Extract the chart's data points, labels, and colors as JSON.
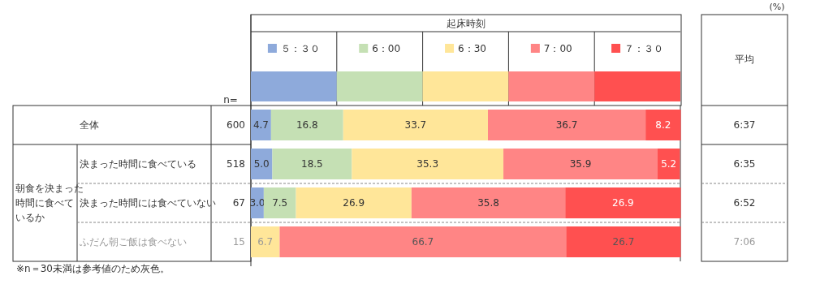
{
  "chart_data": {
    "type": "bar",
    "orientation": "horizontal",
    "stacked": true,
    "legend": "top",
    "legend_title": "起床時刻",
    "categories": [
      "全体",
      "決まった時間に食べている",
      "決まった時間には食べていない",
      "ふだん朝ご飯は食べない"
    ],
    "series": [
      {
        "name": "５：３０",
        "color": "#8eaadb",
        "values": [
          4.7,
          5.0,
          3.0,
          0
        ],
        "value_labels": [
          "4.7",
          "5.0",
          "3.0",
          null
        ]
      },
      {
        "name": "6：00",
        "color": "#c5e0b4",
        "values": [
          16.8,
          18.5,
          7.5,
          0
        ],
        "value_labels": [
          "16.8",
          "18.5",
          "7.5",
          null
        ]
      },
      {
        "name": "6：30",
        "color": "#ffe699",
        "values": [
          33.7,
          35.3,
          26.9,
          6.7
        ],
        "value_labels": [
          "33.7",
          "35.3",
          "26.9",
          "6.7"
        ]
      },
      {
        "name": "7：00",
        "color": "#ff8585",
        "values": [
          36.7,
          35.9,
          35.8,
          66.7
        ],
        "value_labels": [
          "36.7",
          "35.9",
          "35.8",
          "66.7"
        ]
      },
      {
        "name": "７：３０",
        "color": "#ff5050",
        "values": [
          8.2,
          5.2,
          26.9,
          26.7
        ],
        "value_labels": [
          "8.2",
          "5.2",
          "26.9",
          "26.7"
        ]
      }
    ],
    "annotations": [
      "n=",
      "600",
      "518",
      "67",
      "15",
      "平均",
      "6:37",
      "6:35",
      "6:52",
      "7:06",
      "(%)",
      "朝食を決まった時間に食べているか",
      "※n＝30未満は参考値のため灰色。"
    ]
  }
}
